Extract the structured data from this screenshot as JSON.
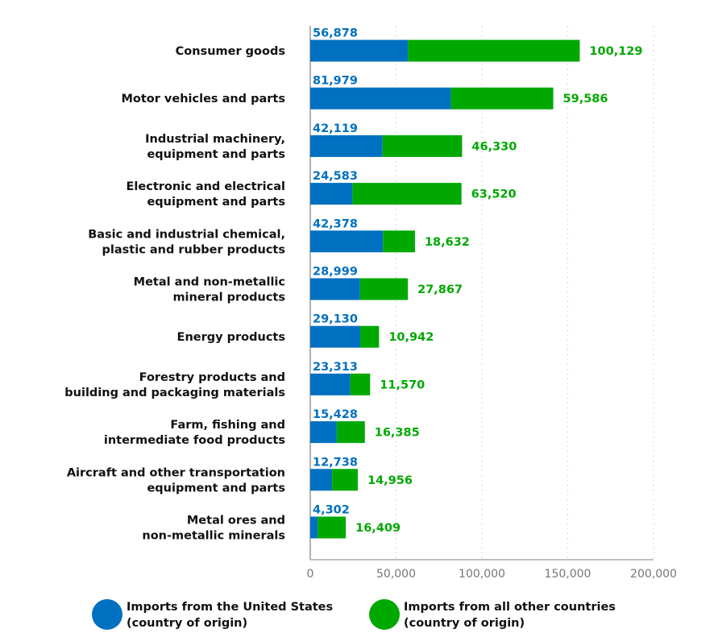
{
  "chart_data": {
    "type": "bar",
    "orientation": "horizontal",
    "stacked": true,
    "categories": [
      [
        "Consumer goods"
      ],
      [
        "Motor vehicles and parts"
      ],
      [
        "Industrial machinery,",
        "equipment and parts"
      ],
      [
        "Electronic and electrical",
        "equipment and parts"
      ],
      [
        "Basic and industrial chemical,",
        "plastic and rubber products"
      ],
      [
        "Metal and non-metallic",
        "mineral products"
      ],
      [
        "Energy products"
      ],
      [
        "Forestry products and",
        "building and packaging materials"
      ],
      [
        "Farm, fishing and",
        "intermediate food products"
      ],
      [
        "Aircraft and other transportation",
        "equipment and parts"
      ],
      [
        "Metal ores and",
        "non-metallic minerals"
      ]
    ],
    "series": [
      {
        "name": "Imports from the United States (country of origin)",
        "legend": [
          "Imports from the United States",
          "(country of origin)"
        ],
        "color": "#0070C0",
        "values": [
          56878,
          81979,
          42119,
          24583,
          42378,
          28999,
          29130,
          23313,
          15428,
          12738,
          4302
        ],
        "labels": [
          "56,878",
          "81,979",
          "42,119",
          "24,583",
          "42,378",
          "28,999",
          "29,130",
          "23,313",
          "15,428",
          "12,738",
          "4,302"
        ]
      },
      {
        "name": "Imports from all other countries (country of origin)",
        "legend": [
          "Imports from all other countries",
          "(country of origin)"
        ],
        "color": "#00A800",
        "values": [
          100129,
          59586,
          46330,
          63520,
          18632,
          27867,
          10942,
          11570,
          16385,
          14956,
          16409
        ],
        "labels": [
          "100,129",
          "59,586",
          "46,330",
          "63,520",
          "18,632",
          "27,867",
          "10,942",
          "11,570",
          "16,385",
          "14,956",
          "16,409"
        ]
      }
    ],
    "xlim": [
      0,
      200000
    ],
    "xticks": [
      0,
      50000,
      100000,
      150000,
      200000
    ],
    "xtick_labels": [
      "0",
      "50,000",
      "100,000",
      "150,000",
      "200,000"
    ],
    "grid": "vertical dotted",
    "legend_position": "bottom"
  }
}
